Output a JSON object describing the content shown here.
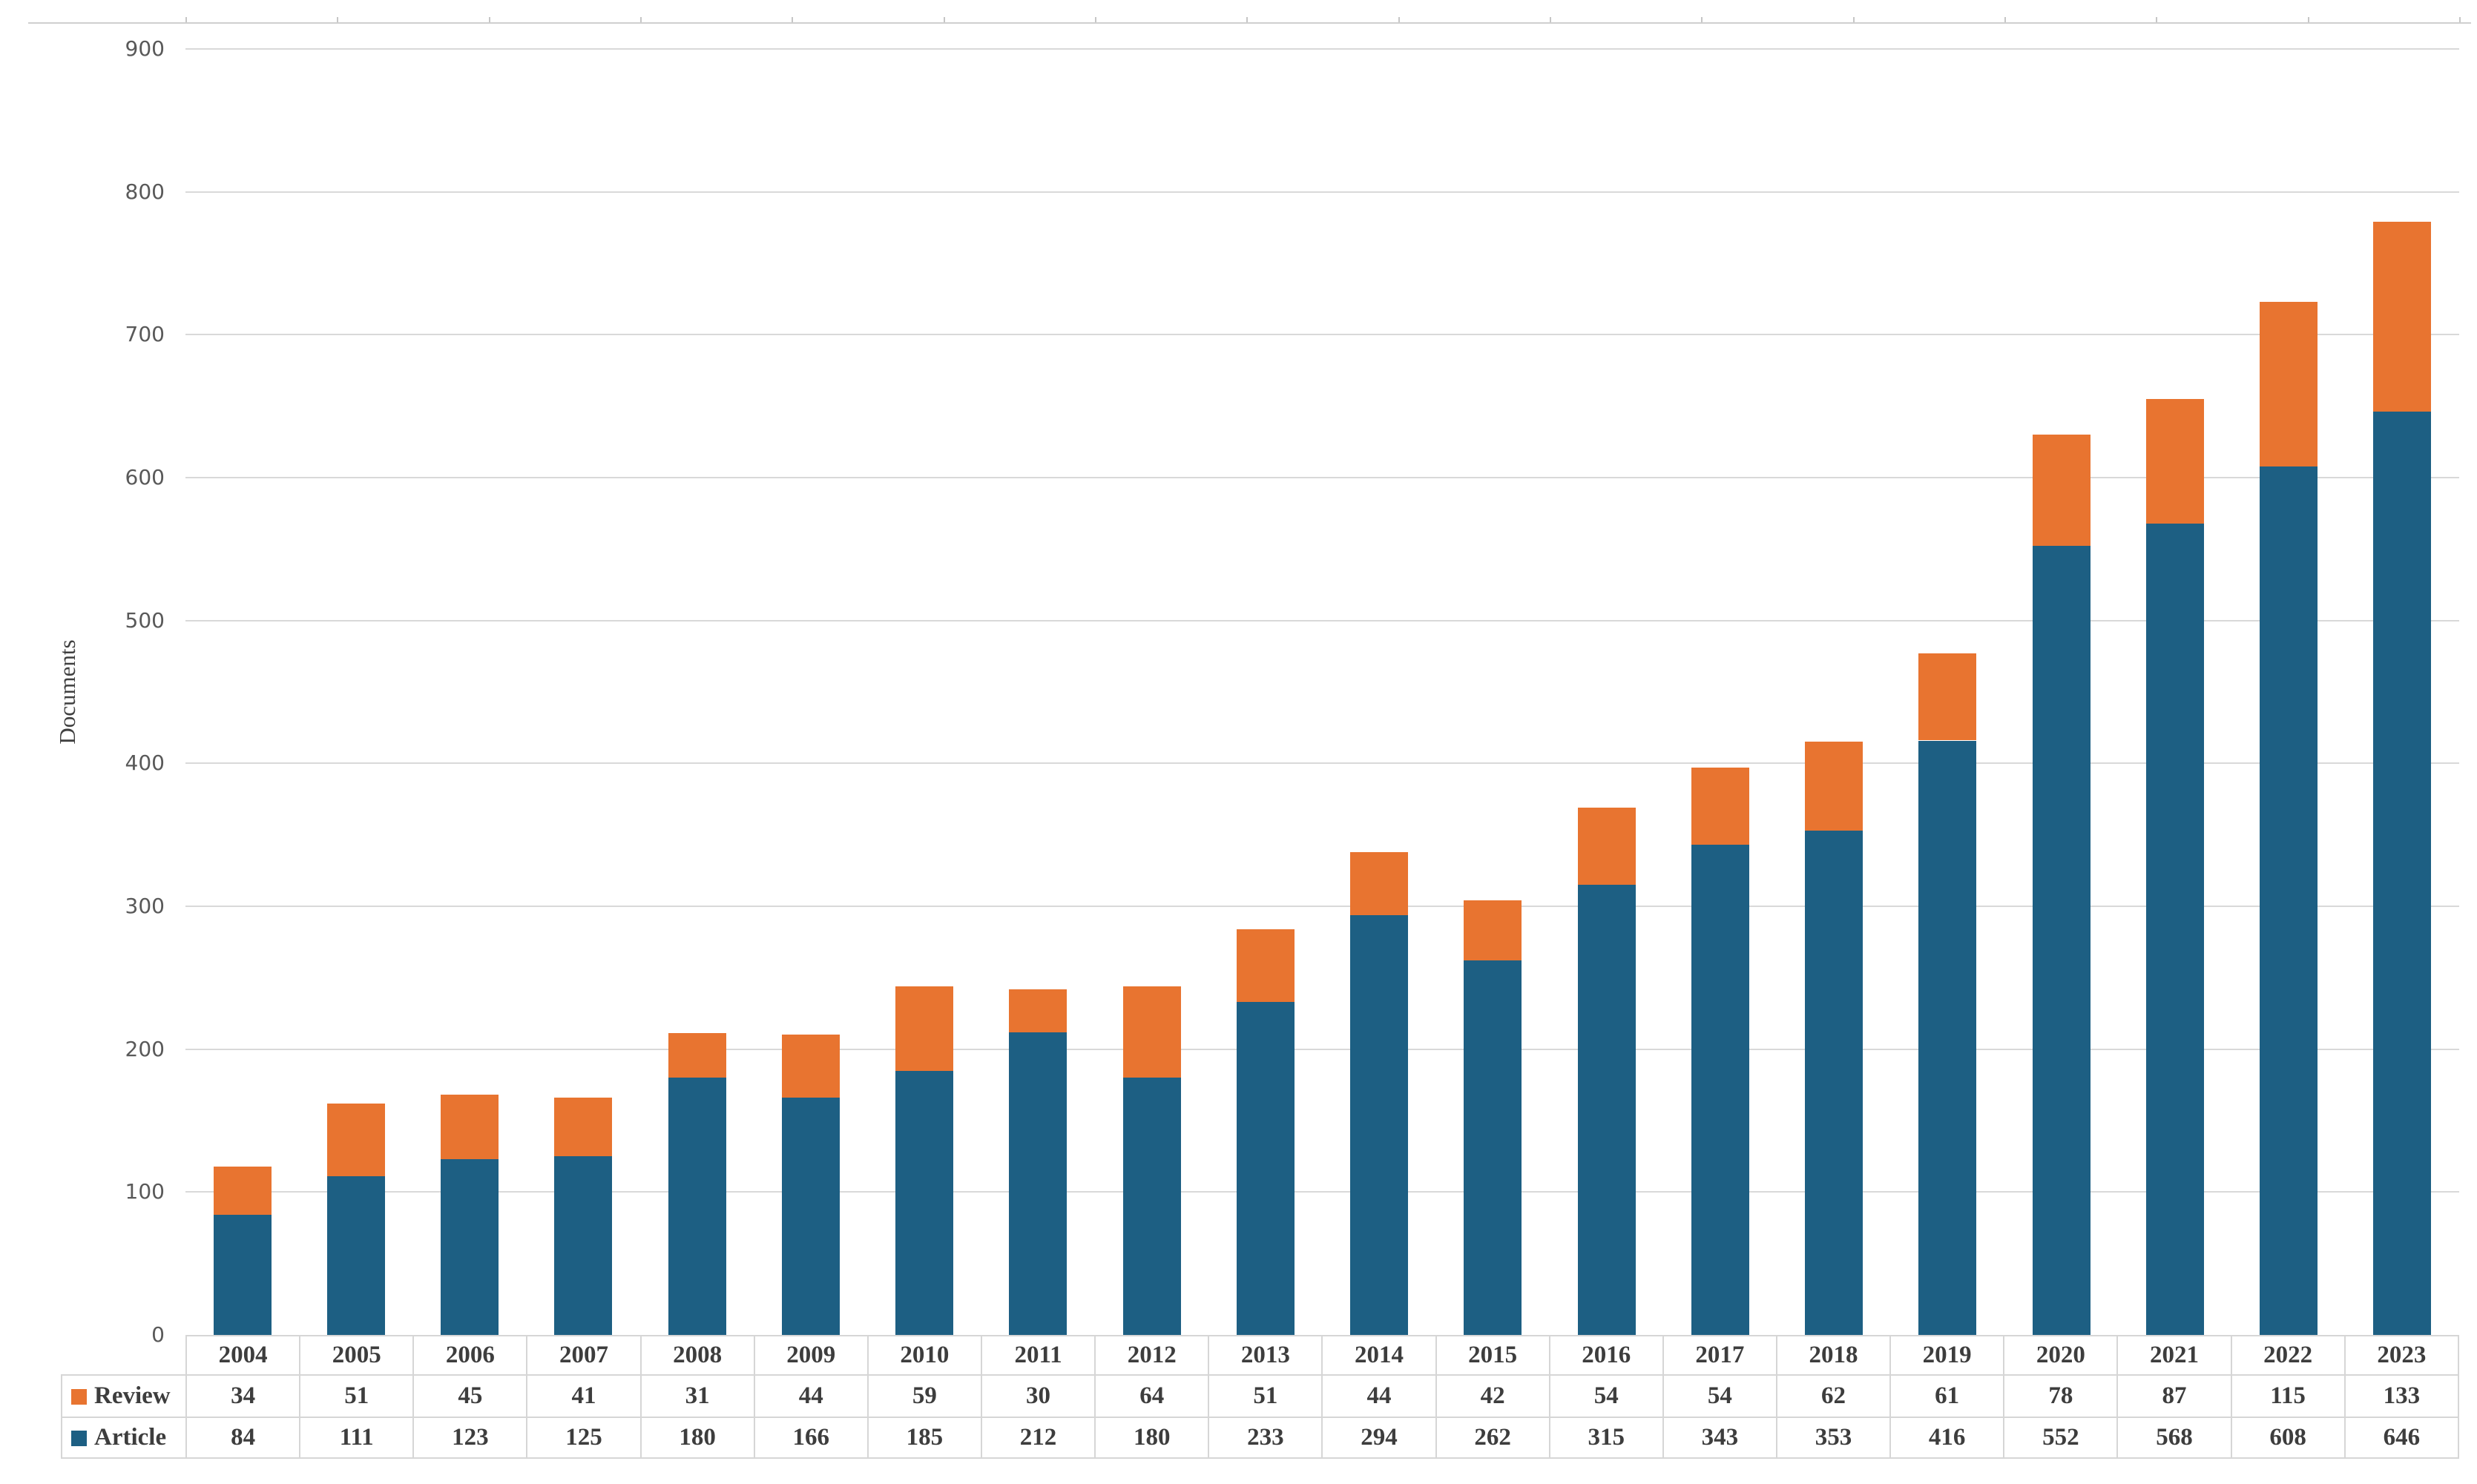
{
  "chart_data": {
    "type": "bar",
    "stacked": true,
    "title": "",
    "xlabel": "",
    "ylabel": "Documents",
    "ylim": [
      0,
      900
    ],
    "ytick_step": 100,
    "grid": true,
    "legend_position": "table-left",
    "categories": [
      "2004",
      "2005",
      "2006",
      "2007",
      "2008",
      "2009",
      "2010",
      "2011",
      "2012",
      "2013",
      "2014",
      "2015",
      "2016",
      "2017",
      "2018",
      "2019",
      "2020",
      "2021",
      "2022",
      "2023"
    ],
    "series": [
      {
        "name": "Review",
        "color": "#E87430",
        "values": [
          34,
          51,
          45,
          41,
          31,
          44,
          59,
          30,
          64,
          51,
          44,
          42,
          54,
          54,
          62,
          61,
          78,
          87,
          115,
          133
        ]
      },
      {
        "name": "Article",
        "color": "#1D5F83",
        "values": [
          84,
          111,
          123,
          125,
          180,
          166,
          185,
          212,
          180,
          233,
          294,
          262,
          315,
          343,
          353,
          416,
          552,
          568,
          608,
          646
        ]
      }
    ]
  },
  "colors": {
    "review": "#E87430",
    "article": "#1D5F83",
    "gridline": "#D9D9D9",
    "axis_tick_text": "#595959",
    "table_text": "#3D3D3D",
    "table_border": "#D6D6D6"
  }
}
